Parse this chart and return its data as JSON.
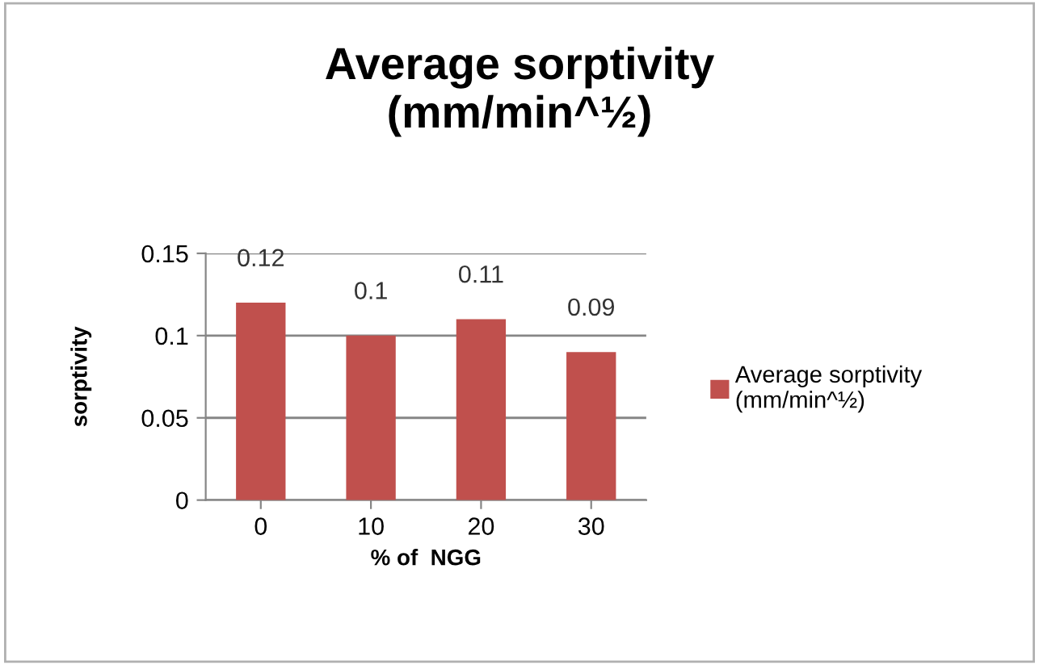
{
  "chart_data": {
    "type": "bar",
    "title": "Average sorptivity\n(mm/min^½)",
    "xlabel": "% of  NGG",
    "ylabel": "sorptivity",
    "categories": [
      "0",
      "10",
      "20",
      "30"
    ],
    "series": [
      {
        "name": "Average sorptivity\n(mm/min^½)",
        "color": "#c0504d",
        "values": [
          0.12,
          0.1,
          0.11,
          0.09
        ]
      }
    ],
    "ylim": [
      0,
      0.15
    ],
    "yticks": [
      0,
      0.05,
      0.1,
      0.15
    ],
    "grid": "y",
    "legend": "right",
    "data_labels": true
  }
}
